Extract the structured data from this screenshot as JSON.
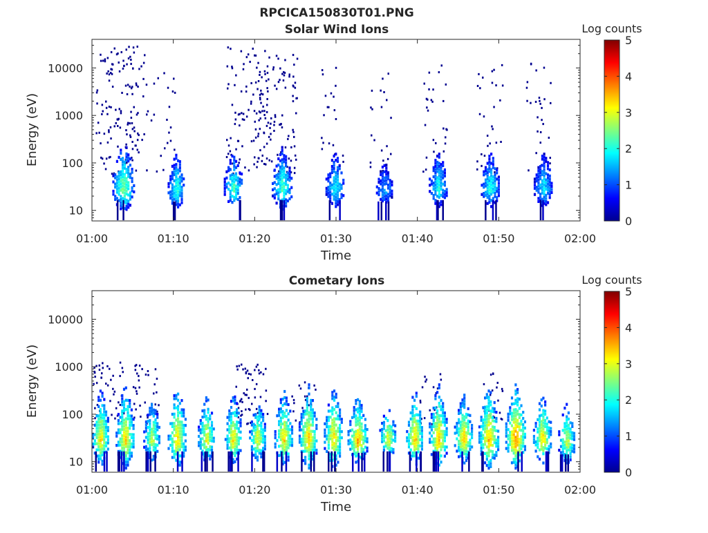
{
  "figure": {
    "title": "RPCICA150830T01.PNG"
  },
  "chart_data": [
    {
      "type": "heatmap",
      "title": "Solar Wind Ions",
      "xlabel": "Time",
      "ylabel": "Energy (eV)",
      "x_ticks": [
        "01:00",
        "01:10",
        "01:20",
        "01:30",
        "01:40",
        "01:50",
        "02:00"
      ],
      "xlim_minutes": [
        0,
        60
      ],
      "y_ticks": [
        "10",
        "100",
        "1000",
        "10000"
      ],
      "y_scale": "log",
      "ylim": [
        6,
        40000
      ],
      "colorbar": {
        "label": "Log counts",
        "ticks": [
          "0",
          "1",
          "2",
          "3",
          "4",
          "5"
        ],
        "range": [
          0,
          5
        ]
      },
      "clusters": [
        {
          "t": 3.8,
          "e": 30,
          "logc": 2.6,
          "w": 2.6,
          "spread": 1.0
        },
        {
          "t": 10.3,
          "e": 28,
          "logc": 2.2,
          "w": 2.0,
          "spread": 0.8
        },
        {
          "t": 17.3,
          "e": 30,
          "logc": 2.3,
          "w": 2.2,
          "spread": 0.8
        },
        {
          "t": 23.3,
          "e": 30,
          "logc": 2.3,
          "w": 2.4,
          "spread": 0.9
        },
        {
          "t": 29.8,
          "e": 30,
          "logc": 2.0,
          "w": 2.2,
          "spread": 0.8
        },
        {
          "t": 35.9,
          "e": 28,
          "logc": 1.6,
          "w": 2.0,
          "spread": 0.6
        },
        {
          "t": 42.5,
          "e": 30,
          "logc": 2.0,
          "w": 2.2,
          "spread": 0.8
        },
        {
          "t": 48.9,
          "e": 30,
          "logc": 2.1,
          "w": 2.2,
          "spread": 0.8
        },
        {
          "t": 55.4,
          "e": 30,
          "logc": 1.9,
          "w": 2.2,
          "spread": 0.8
        }
      ],
      "scatter_columns": [
        {
          "t": 3.6,
          "density": 1.0,
          "emax": 30000
        },
        {
          "t": 19.0,
          "density": 0.7,
          "emax": 30000
        },
        {
          "t": 22.6,
          "density": 0.7,
          "emax": 20000
        },
        {
          "t": 8.7,
          "density": 0.15,
          "emax": 15000
        },
        {
          "t": 29.6,
          "density": 0.15,
          "emax": 15000
        },
        {
          "t": 35.6,
          "density": 0.15,
          "emax": 15000
        },
        {
          "t": 42.0,
          "density": 0.2,
          "emax": 15000
        },
        {
          "t": 48.8,
          "density": 0.2,
          "emax": 15000
        },
        {
          "t": 54.8,
          "density": 0.2,
          "emax": 15000
        }
      ]
    },
    {
      "type": "heatmap",
      "title": "Cometary Ions",
      "xlabel": "Time",
      "ylabel": "Energy (eV)",
      "x_ticks": [
        "01:00",
        "01:10",
        "01:20",
        "01:30",
        "01:40",
        "01:50",
        "02:00"
      ],
      "xlim_minutes": [
        0,
        60
      ],
      "y_ticks": [
        "10",
        "100",
        "1000",
        "10000"
      ],
      "y_scale": "log",
      "ylim": [
        6,
        40000
      ],
      "colorbar": {
        "label": "Log counts",
        "ticks": [
          "0",
          "1",
          "2",
          "3",
          "4",
          "5"
        ],
        "range": [
          0,
          5
        ]
      },
      "clusters": [
        {
          "t": 1.0,
          "e": 30,
          "logc": 3.4,
          "w": 2.0,
          "spread": 1.1
        },
        {
          "t": 4.0,
          "e": 30,
          "logc": 3.5,
          "w": 2.2,
          "spread": 1.2
        },
        {
          "t": 7.3,
          "e": 30,
          "logc": 3.0,
          "w": 2.0,
          "spread": 0.9
        },
        {
          "t": 10.4,
          "e": 30,
          "logc": 3.4,
          "w": 2.2,
          "spread": 1.2
        },
        {
          "t": 14.0,
          "e": 30,
          "logc": 3.2,
          "w": 2.0,
          "spread": 1.0
        },
        {
          "t": 17.3,
          "e": 30,
          "logc": 3.4,
          "w": 2.0,
          "spread": 1.0
        },
        {
          "t": 20.3,
          "e": 30,
          "logc": 3.2,
          "w": 2.0,
          "spread": 0.9
        },
        {
          "t": 23.5,
          "e": 30,
          "logc": 3.4,
          "w": 2.2,
          "spread": 1.1
        },
        {
          "t": 26.5,
          "e": 30,
          "logc": 3.5,
          "w": 2.2,
          "spread": 1.2
        },
        {
          "t": 29.6,
          "e": 30,
          "logc": 3.5,
          "w": 2.2,
          "spread": 1.2
        },
        {
          "t": 32.6,
          "e": 28,
          "logc": 3.6,
          "w": 2.4,
          "spread": 1.0
        },
        {
          "t": 36.3,
          "e": 30,
          "logc": 3.2,
          "w": 2.0,
          "spread": 0.8
        },
        {
          "t": 39.6,
          "e": 30,
          "logc": 3.6,
          "w": 2.0,
          "spread": 1.1
        },
        {
          "t": 42.5,
          "e": 30,
          "logc": 3.6,
          "w": 2.2,
          "spread": 1.2
        },
        {
          "t": 45.6,
          "e": 30,
          "logc": 3.5,
          "w": 2.2,
          "spread": 1.0
        },
        {
          "t": 48.7,
          "e": 30,
          "logc": 3.6,
          "w": 2.4,
          "spread": 1.2
        },
        {
          "t": 52.0,
          "e": 30,
          "logc": 3.9,
          "w": 2.4,
          "spread": 1.2
        },
        {
          "t": 55.3,
          "e": 30,
          "logc": 3.4,
          "w": 2.2,
          "spread": 1.0
        },
        {
          "t": 58.3,
          "e": 26,
          "logc": 3.0,
          "w": 2.0,
          "spread": 0.9
        }
      ],
      "scatter_columns": [
        {
          "t": 2.0,
          "density": 0.35,
          "emax": 1300
        },
        {
          "t": 6.5,
          "density": 0.25,
          "emax": 1300
        },
        {
          "t": 19.5,
          "density": 0.4,
          "emax": 1300
        },
        {
          "t": 26.0,
          "density": 0.15,
          "emax": 500
        },
        {
          "t": 41.5,
          "density": 0.15,
          "emax": 800
        },
        {
          "t": 49.0,
          "density": 0.15,
          "emax": 800
        }
      ]
    }
  ]
}
